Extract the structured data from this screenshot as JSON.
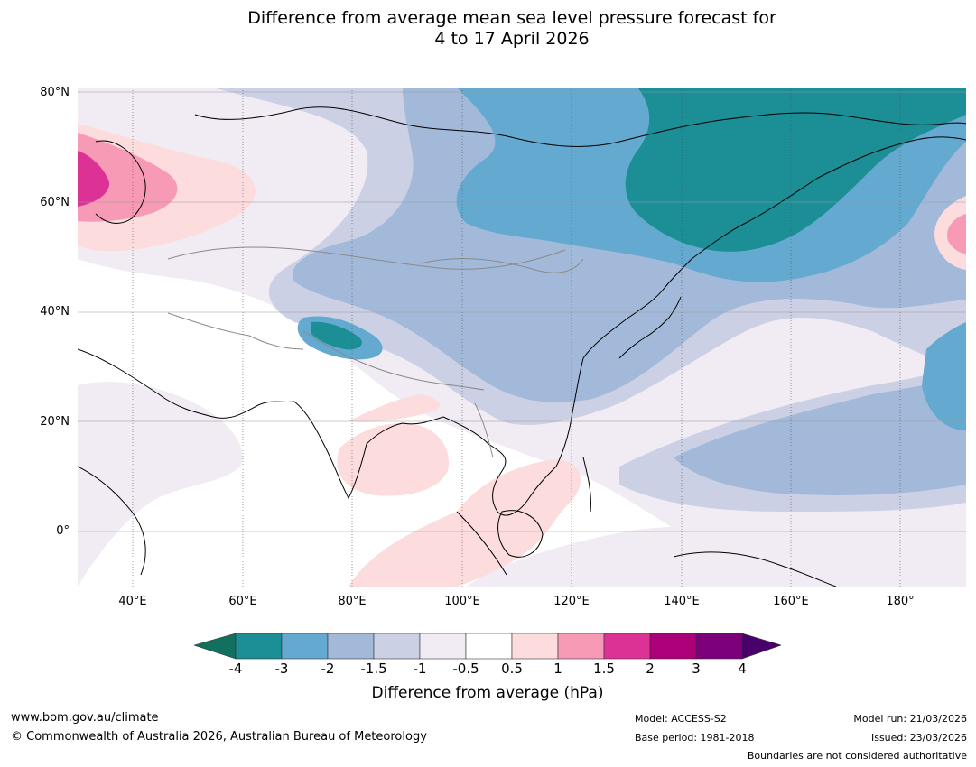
{
  "title_line1": "Difference from average mean sea level pressure forecast for",
  "title_line2": "4 to 17 April 2026",
  "lat_labels": [
    "80°N",
    "60°N",
    "40°N",
    "20°N",
    "0°"
  ],
  "lon_labels": [
    "40°E",
    "60°E",
    "80°E",
    "100°E",
    "120°E",
    "140°E",
    "160°E",
    "180°"
  ],
  "colorbar": {
    "ticks": [
      "-4",
      "-3",
      "-2",
      "-1.5",
      "-1",
      "-0.5",
      "0.5",
      "1",
      "1.5",
      "2",
      "3",
      "4"
    ],
    "label": "Difference from average (hPa)",
    "colors": {
      "below_min": "#12705f",
      "c1": "#1b8e96",
      "c2": "#64a9cf",
      "c3": "#a3b9d9",
      "c4": "#ccd0e5",
      "c5": "#f1ebf4",
      "c6": "#ffffff",
      "c7": "#fcdcdc",
      "c8": "#f79ab5",
      "c9": "#dc3296",
      "c10": "#ab0077",
      "c11": "#7b007a",
      "above_max": "#4a006a"
    }
  },
  "footer": {
    "website": "www.bom.gov.au/climate",
    "copyright": "© Commonwealth of Australia 2026, Australian Bureau of Meteorology",
    "model": "Model: ACCESS-S2",
    "base_period": "Base period: 1981-2018",
    "model_run": "Model run: 21/03/2026",
    "issued": "Issued: 23/03/2026",
    "disclaimer": "Boundaries are not considered authoritative"
  }
}
